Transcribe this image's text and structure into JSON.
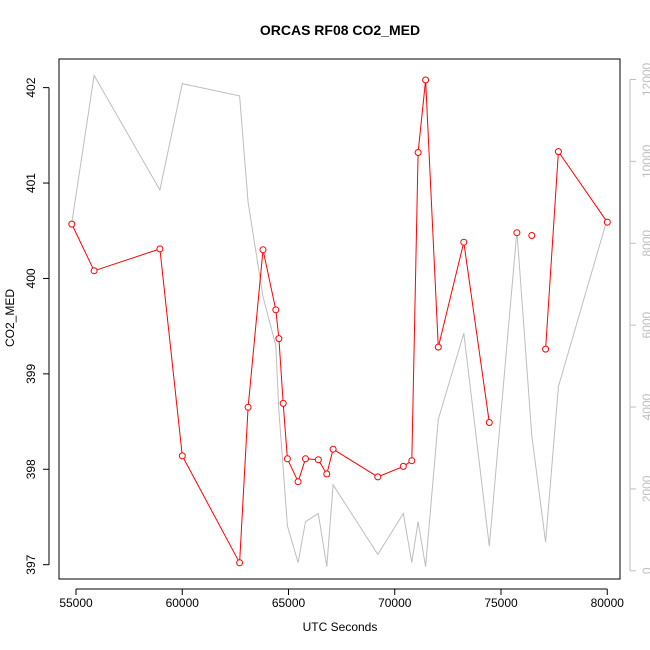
{
  "chart_data": {
    "type": "line",
    "title": "ORCAS RF08 CO2_MED",
    "xlabel": "UTC Seconds",
    "ylabel": "CO2_MED",
    "xlim": [
      54200,
      80600
    ],
    "ylim": [
      396.85,
      402.3
    ],
    "y2lim": [
      -200,
      12500
    ],
    "grid": false,
    "x_ticks": [
      55000,
      60000,
      65000,
      70000,
      75000,
      80000
    ],
    "y_ticks": [
      397,
      398,
      399,
      400,
      401,
      402
    ],
    "y2_ticks": [
      0,
      2000,
      4000,
      6000,
      8000,
      10000,
      12000
    ],
    "series": [
      {
        "color": "#ff0000",
        "marker": "circle",
        "axis": "left",
        "points": [
          [
            54800,
            400.57
          ],
          [
            55850,
            400.08
          ],
          [
            58950,
            400.31
          ],
          [
            60000,
            398.14
          ],
          [
            62700,
            397.02
          ],
          [
            63100,
            398.65
          ],
          [
            63800,
            400.3
          ],
          [
            64400,
            399.67
          ],
          [
            64550,
            399.37
          ],
          [
            64750,
            398.69
          ],
          [
            64950,
            398.11
          ],
          [
            65450,
            397.87
          ],
          [
            65800,
            398.11
          ],
          [
            66400,
            398.1
          ],
          [
            66800,
            397.95
          ],
          [
            67100,
            398.21
          ],
          [
            69200,
            397.92
          ],
          [
            70400,
            398.03
          ],
          [
            70800,
            398.09
          ],
          [
            71100,
            401.32
          ],
          [
            71450,
            402.08
          ],
          [
            72050,
            399.28
          ],
          [
            73250,
            400.38
          ],
          [
            74450,
            398.49
          ],
          [
            75750,
            400.48
          ],
          [
            76450,
            400.45
          ],
          [
            77100,
            399.26
          ],
          [
            77700,
            401.33
          ],
          [
            80000,
            400.59
          ]
        ],
        "breaks_after_index": [
          23,
          24,
          25
        ]
      },
      {
        "color": "#bebebe",
        "marker": "none",
        "axis": "right",
        "points": [
          [
            54800,
            8500
          ],
          [
            55850,
            12100
          ],
          [
            58950,
            9300
          ],
          [
            60000,
            11900
          ],
          [
            62700,
            11600
          ],
          [
            63100,
            9000
          ],
          [
            63800,
            6700
          ],
          [
            64400,
            5500
          ],
          [
            64550,
            3900
          ],
          [
            64750,
            2500
          ],
          [
            64950,
            1100
          ],
          [
            65450,
            200
          ],
          [
            65800,
            1200
          ],
          [
            66400,
            1400
          ],
          [
            66800,
            100
          ],
          [
            67100,
            2100
          ],
          [
            69200,
            400
          ],
          [
            70400,
            1400
          ],
          [
            70800,
            200
          ],
          [
            71100,
            1200
          ],
          [
            71450,
            100
          ],
          [
            72050,
            3700
          ],
          [
            73250,
            5800
          ],
          [
            74450,
            600
          ],
          [
            75750,
            8300
          ],
          [
            76450,
            3300
          ],
          [
            77100,
            700
          ],
          [
            77700,
            4500
          ],
          [
            80000,
            8600
          ]
        ]
      }
    ]
  }
}
